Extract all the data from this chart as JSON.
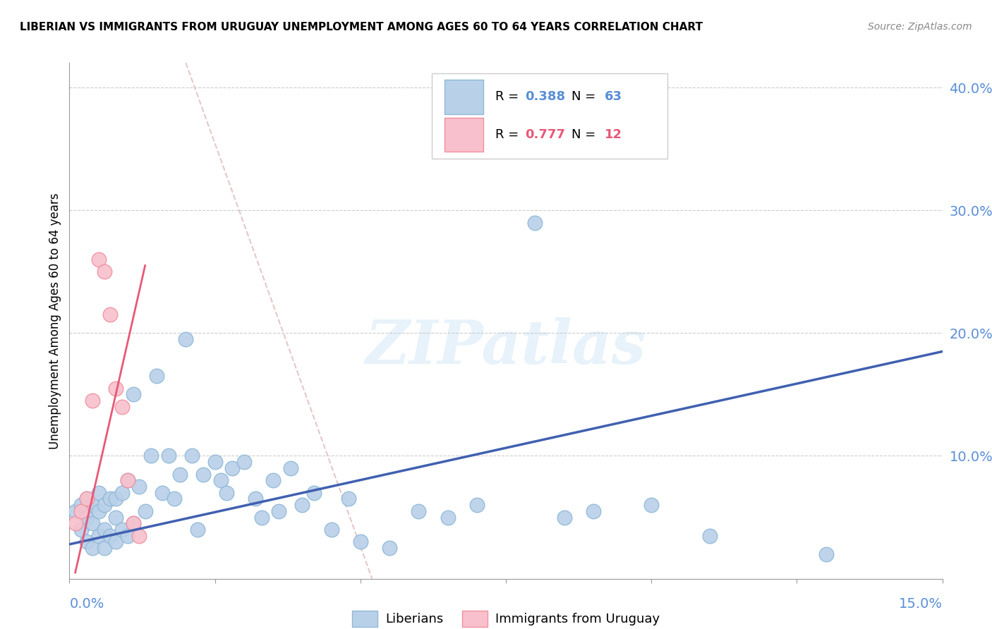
{
  "title": "LIBERIAN VS IMMIGRANTS FROM URUGUAY UNEMPLOYMENT AMONG AGES 60 TO 64 YEARS CORRELATION CHART",
  "source": "Source: ZipAtlas.com",
  "ylabel": "Unemployment Among Ages 60 to 64 years",
  "xlim": [
    0.0,
    0.15
  ],
  "ylim": [
    0.0,
    0.42
  ],
  "yticks": [
    0.1,
    0.2,
    0.3,
    0.4
  ],
  "ytick_labels": [
    "10.0%",
    "20.0%",
    "30.0%",
    "40.0%"
  ],
  "liberian_color": "#b8d0e8",
  "liberian_edge_color": "#90b8d8",
  "uruguay_color": "#f8c0cc",
  "uruguay_edge_color": "#f090a0",
  "blue_line_color": "#4060b0",
  "pink_line_color": "#e85878",
  "dashed_line_color": "#ddbbbb",
  "liberian_points_x": [
    0.001,
    0.002,
    0.002,
    0.003,
    0.003,
    0.003,
    0.004,
    0.004,
    0.004,
    0.005,
    0.005,
    0.005,
    0.006,
    0.006,
    0.006,
    0.007,
    0.007,
    0.008,
    0.008,
    0.008,
    0.009,
    0.009,
    0.01,
    0.01,
    0.011,
    0.011,
    0.012,
    0.013,
    0.014,
    0.015,
    0.016,
    0.017,
    0.018,
    0.019,
    0.02,
    0.021,
    0.022,
    0.023,
    0.025,
    0.026,
    0.027,
    0.028,
    0.03,
    0.032,
    0.033,
    0.035,
    0.036,
    0.038,
    0.04,
    0.042,
    0.045,
    0.048,
    0.05,
    0.055,
    0.06,
    0.065,
    0.07,
    0.08,
    0.085,
    0.09,
    0.1,
    0.11,
    0.13
  ],
  "liberian_points_y": [
    0.055,
    0.06,
    0.04,
    0.065,
    0.05,
    0.03,
    0.06,
    0.045,
    0.025,
    0.07,
    0.055,
    0.035,
    0.06,
    0.04,
    0.025,
    0.065,
    0.035,
    0.065,
    0.05,
    0.03,
    0.07,
    0.04,
    0.08,
    0.035,
    0.15,
    0.045,
    0.075,
    0.055,
    0.1,
    0.165,
    0.07,
    0.1,
    0.065,
    0.085,
    0.195,
    0.1,
    0.04,
    0.085,
    0.095,
    0.08,
    0.07,
    0.09,
    0.095,
    0.065,
    0.05,
    0.08,
    0.055,
    0.09,
    0.06,
    0.07,
    0.04,
    0.065,
    0.03,
    0.025,
    0.055,
    0.05,
    0.06,
    0.29,
    0.05,
    0.055,
    0.06,
    0.035,
    0.02
  ],
  "uruguay_points_x": [
    0.001,
    0.002,
    0.003,
    0.004,
    0.005,
    0.006,
    0.007,
    0.008,
    0.009,
    0.01,
    0.011,
    0.012
  ],
  "uruguay_points_y": [
    0.045,
    0.055,
    0.065,
    0.145,
    0.26,
    0.25,
    0.215,
    0.155,
    0.14,
    0.08,
    0.045,
    0.035
  ],
  "blue_trend_x": [
    0.0,
    0.15
  ],
  "blue_trend_y": [
    0.028,
    0.185
  ],
  "pink_trend_x": [
    0.001,
    0.013
  ],
  "pink_trend_y": [
    0.005,
    0.255
  ],
  "dashed_line_x": [
    0.02,
    0.052
  ],
  "dashed_line_y": [
    0.42,
    0.0
  ],
  "blue_r": "0.388",
  "blue_n": "63",
  "pink_r": "0.777",
  "pink_n": "12",
  "watermark_text": "ZIPatlas",
  "r_text_color": "#5b8ed6",
  "pink_r_text_color": "#e85878"
}
